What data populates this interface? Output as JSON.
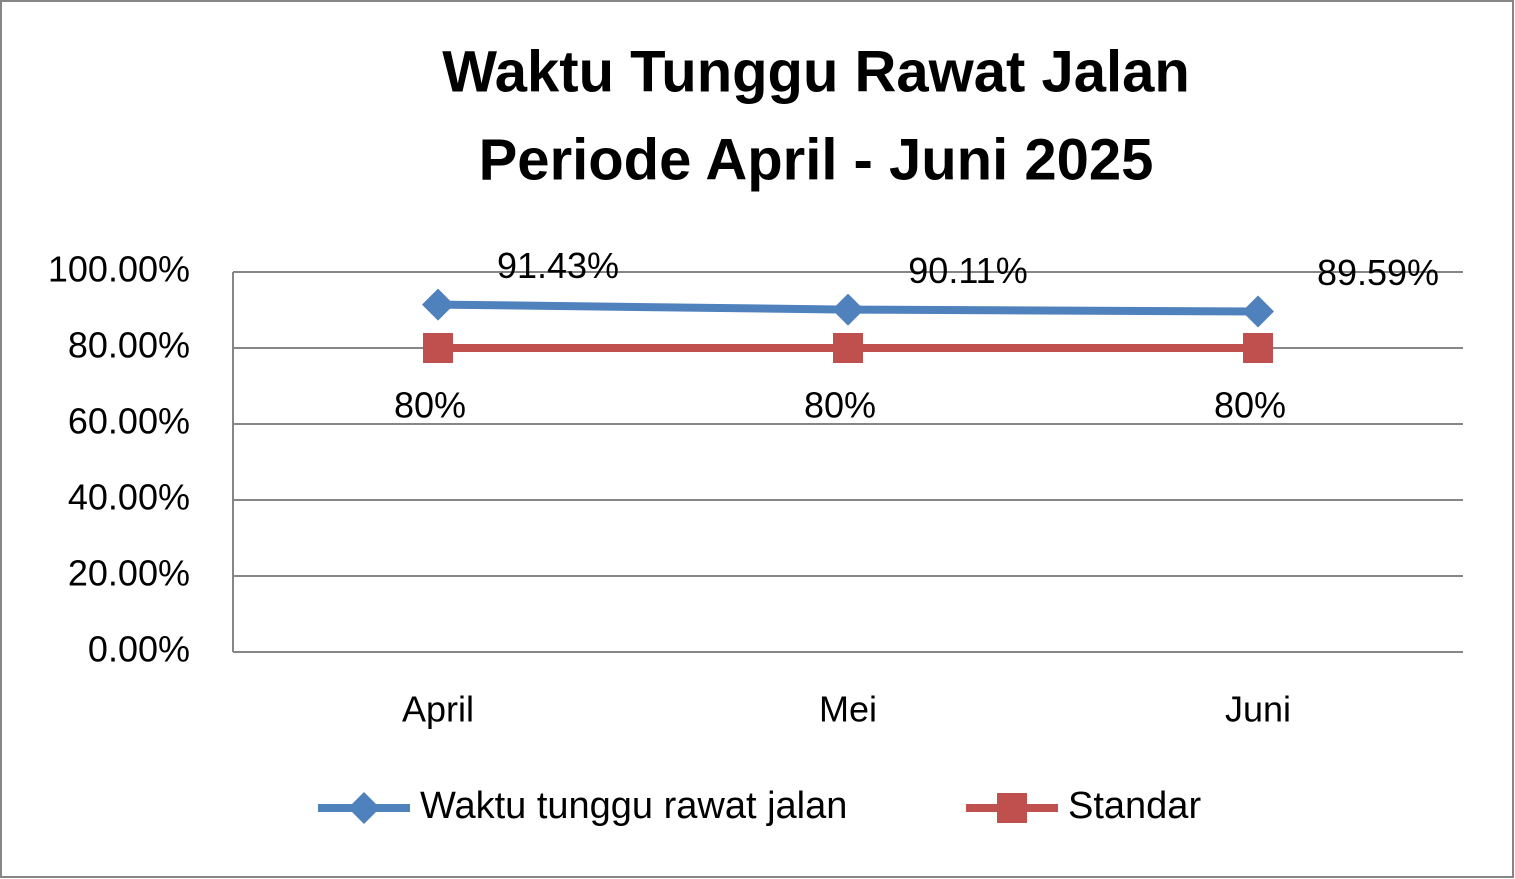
{
  "chart_data": {
    "type": "line",
    "title": [
      "Waktu Tunggu Rawat Jalan",
      "Periode April - Juni 2025"
    ],
    "categories": [
      "April",
      "Mei",
      "Juni"
    ],
    "series": [
      {
        "name": "Waktu tunggu rawat jalan",
        "color": "#4f81bd",
        "marker": "diamond",
        "values": [
          91.43,
          90.11,
          89.59
        ],
        "value_labels": [
          "91.43%",
          "90.11%",
          "89.59%"
        ]
      },
      {
        "name": "Standar",
        "color": "#c0504d",
        "marker": "square",
        "values": [
          80,
          80,
          80
        ],
        "value_labels": [
          "80%",
          "80%",
          "80%"
        ]
      }
    ],
    "ylim": [
      0,
      100
    ],
    "yticks": [
      {
        "value": 0,
        "label": "0.00%"
      },
      {
        "value": 20,
        "label": "20.00%"
      },
      {
        "value": 40,
        "label": "40.00%"
      },
      {
        "value": 60,
        "label": "60.00%"
      },
      {
        "value": 80,
        "label": "80.00%"
      },
      {
        "value": 100,
        "label": "100.00%"
      }
    ],
    "grid": true,
    "legend": "bottom"
  }
}
